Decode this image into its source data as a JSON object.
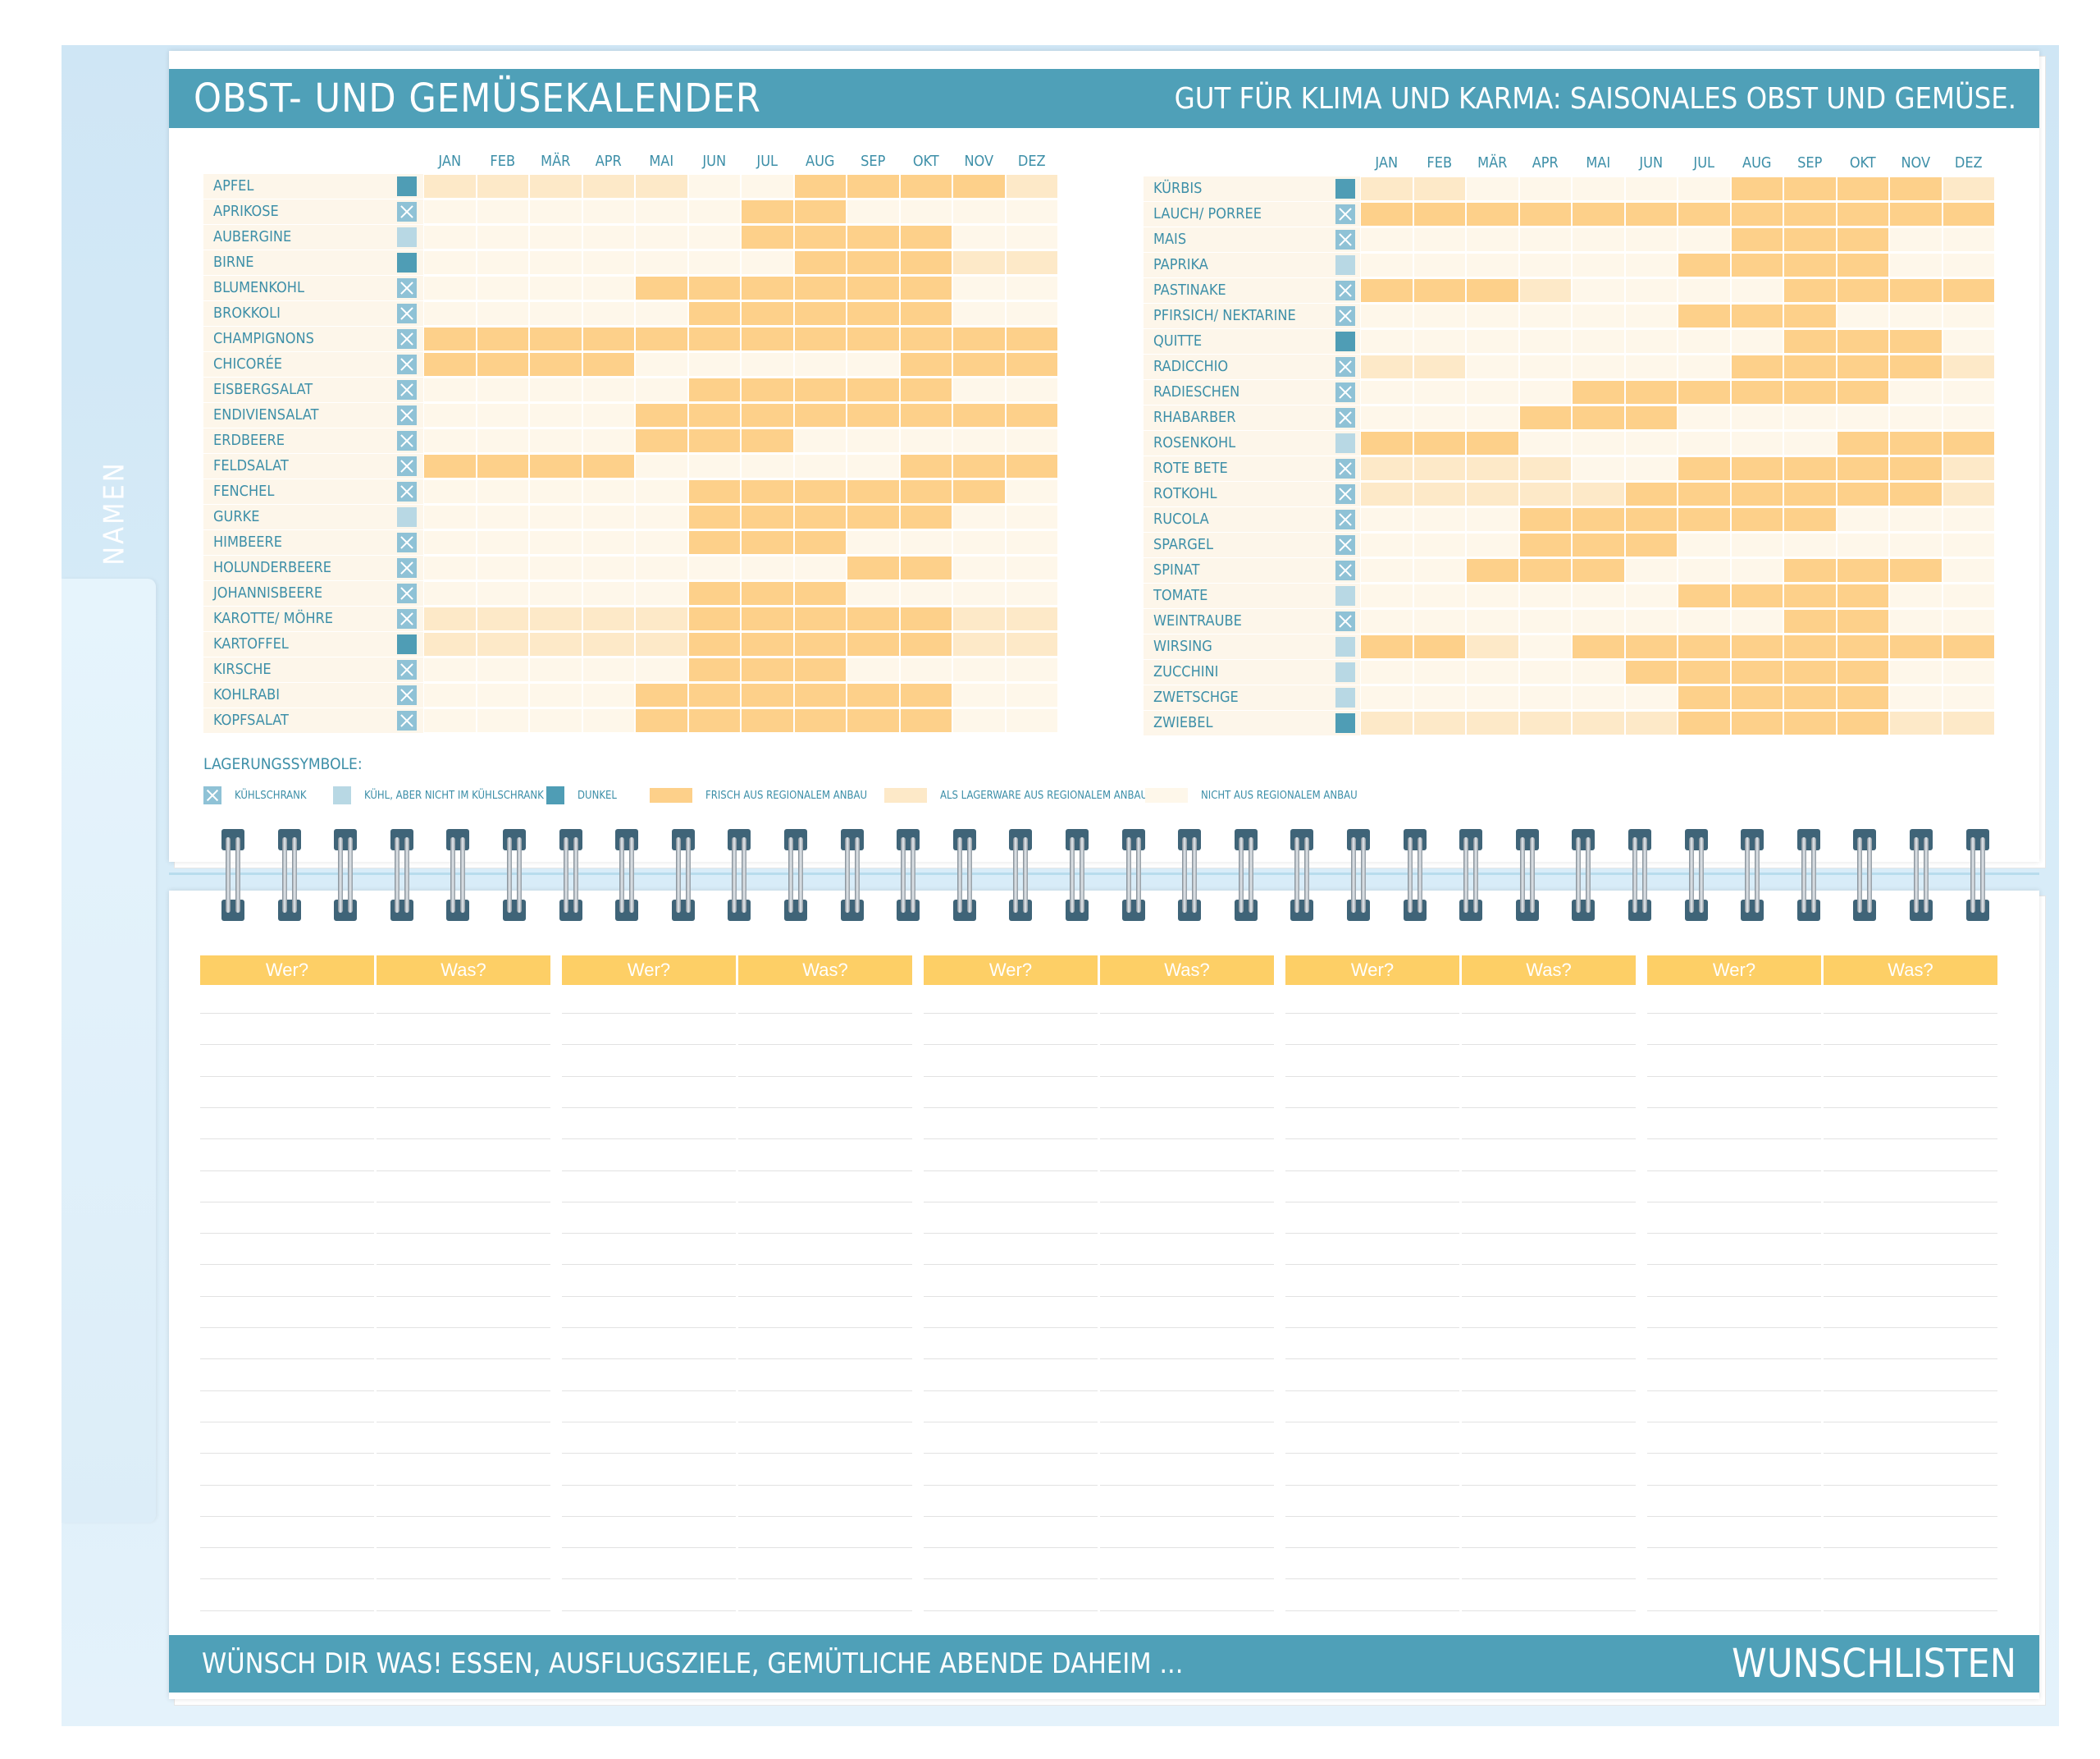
{
  "header": {
    "title": "Obst- und Gemüsekalender",
    "subtitle": "Gut für Klima und Karma: saisonales Obst und Gemüse."
  },
  "side_tab": {
    "label": "NAMEN"
  },
  "months": [
    "JAN",
    "FEB",
    "MÄR",
    "APR",
    "MAI",
    "JUN",
    "JUL",
    "AUG",
    "SEP",
    "OKT",
    "NOV",
    "DEZ"
  ],
  "value_legend": {
    "2": "frisch aus regionalem Anbau",
    "1": "als Lagerware aus regionalem Anbau",
    "0": "nicht aus regionalem Anbau"
  },
  "storage_legend": {
    "k": "Kühlschrank",
    "c": "kühl, aber nicht im Kühlschrank",
    "d": "dunkel"
  },
  "left_table": [
    {
      "name": "Apfel",
      "storage": "d",
      "values": [
        1,
        1,
        1,
        1,
        1,
        0,
        0,
        2,
        2,
        2,
        2,
        1
      ]
    },
    {
      "name": "Aprikose",
      "storage": "k",
      "values": [
        0,
        0,
        0,
        0,
        0,
        0,
        2,
        2,
        0,
        0,
        0,
        0
      ]
    },
    {
      "name": "Aubergine",
      "storage": "c",
      "values": [
        0,
        0,
        0,
        0,
        0,
        0,
        2,
        2,
        2,
        2,
        0,
        0
      ]
    },
    {
      "name": "Birne",
      "storage": "d",
      "values": [
        0,
        0,
        0,
        0,
        0,
        0,
        0,
        2,
        2,
        2,
        1,
        1
      ]
    },
    {
      "name": "Blumenkohl",
      "storage": "k",
      "values": [
        0,
        0,
        0,
        0,
        2,
        2,
        2,
        2,
        2,
        2,
        0,
        0
      ]
    },
    {
      "name": "Brokkoli",
      "storage": "k",
      "values": [
        0,
        0,
        0,
        0,
        0,
        2,
        2,
        2,
        2,
        2,
        0,
        0
      ]
    },
    {
      "name": "Champignons",
      "storage": "k",
      "values": [
        2,
        2,
        2,
        2,
        2,
        2,
        2,
        2,
        2,
        2,
        2,
        2
      ]
    },
    {
      "name": "Chicorée",
      "storage": "k",
      "values": [
        2,
        2,
        2,
        2,
        0,
        0,
        0,
        0,
        0,
        2,
        2,
        2
      ]
    },
    {
      "name": "Eisbergsalat",
      "storage": "k",
      "values": [
        0,
        0,
        0,
        0,
        0,
        2,
        2,
        2,
        2,
        2,
        0,
        0
      ]
    },
    {
      "name": "Endiviensalat",
      "storage": "k",
      "values": [
        0,
        0,
        0,
        0,
        2,
        2,
        2,
        2,
        2,
        2,
        2,
        2
      ]
    },
    {
      "name": "Erdbeere",
      "storage": "k",
      "values": [
        0,
        0,
        0,
        0,
        2,
        2,
        2,
        0,
        0,
        0,
        0,
        0
      ]
    },
    {
      "name": "Feldsalat",
      "storage": "k",
      "values": [
        2,
        2,
        2,
        2,
        0,
        0,
        0,
        0,
        0,
        2,
        2,
        2
      ]
    },
    {
      "name": "Fenchel",
      "storage": "k",
      "values": [
        0,
        0,
        0,
        0,
        0,
        2,
        2,
        2,
        2,
        2,
        2,
        0
      ]
    },
    {
      "name": "Gurke",
      "storage": "c",
      "values": [
        0,
        0,
        0,
        0,
        0,
        2,
        2,
        2,
        2,
        2,
        0,
        0
      ]
    },
    {
      "name": "Himbeere",
      "storage": "k",
      "values": [
        0,
        0,
        0,
        0,
        0,
        2,
        2,
        2,
        0,
        0,
        0,
        0
      ]
    },
    {
      "name": "Holunderbeere",
      "storage": "k",
      "values": [
        0,
        0,
        0,
        0,
        0,
        0,
        0,
        0,
        2,
        2,
        0,
        0
      ]
    },
    {
      "name": "Johannisbeere",
      "storage": "k",
      "values": [
        0,
        0,
        0,
        0,
        0,
        2,
        2,
        2,
        0,
        0,
        0,
        0
      ]
    },
    {
      "name": "Karotte/ Möhre",
      "storage": "k",
      "values": [
        1,
        1,
        1,
        1,
        1,
        2,
        2,
        2,
        2,
        2,
        1,
        1
      ]
    },
    {
      "name": "Kartoffel",
      "storage": "d",
      "values": [
        1,
        1,
        1,
        1,
        1,
        2,
        2,
        2,
        2,
        2,
        1,
        1
      ]
    },
    {
      "name": "Kirsche",
      "storage": "k",
      "values": [
        0,
        0,
        0,
        0,
        0,
        2,
        2,
        2,
        0,
        0,
        0,
        0
      ]
    },
    {
      "name": "Kohlrabi",
      "storage": "k",
      "values": [
        0,
        0,
        0,
        0,
        2,
        2,
        2,
        2,
        2,
        2,
        0,
        0
      ]
    },
    {
      "name": "Kopfsalat",
      "storage": "k",
      "values": [
        0,
        0,
        0,
        0,
        2,
        2,
        2,
        2,
        2,
        2,
        0,
        0
      ]
    }
  ],
  "right_table": [
    {
      "name": "Kürbis",
      "storage": "d",
      "values": [
        1,
        1,
        0,
        0,
        0,
        0,
        0,
        2,
        2,
        2,
        2,
        1
      ]
    },
    {
      "name": "Lauch/ Porree",
      "storage": "k",
      "values": [
        2,
        2,
        2,
        2,
        2,
        2,
        2,
        2,
        2,
        2,
        2,
        2
      ]
    },
    {
      "name": "Mais",
      "storage": "k",
      "values": [
        0,
        0,
        0,
        0,
        0,
        0,
        0,
        2,
        2,
        2,
        0,
        0
      ]
    },
    {
      "name": "Paprika",
      "storage": "c",
      "values": [
        0,
        0,
        0,
        0,
        0,
        0,
        2,
        2,
        2,
        2,
        0,
        0
      ]
    },
    {
      "name": "Pastinake",
      "storage": "k",
      "values": [
        2,
        2,
        2,
        1,
        0,
        0,
        0,
        0,
        2,
        2,
        2,
        2
      ]
    },
    {
      "name": "Pfirsich/ Nektarine",
      "storage": "k",
      "values": [
        0,
        0,
        0,
        0,
        0,
        0,
        2,
        2,
        2,
        0,
        0,
        0
      ]
    },
    {
      "name": "Quitte",
      "storage": "d",
      "values": [
        0,
        0,
        0,
        0,
        0,
        0,
        0,
        0,
        2,
        2,
        2,
        0
      ]
    },
    {
      "name": "Radicchio",
      "storage": "k",
      "values": [
        1,
        1,
        0,
        0,
        0,
        0,
        0,
        2,
        2,
        2,
        2,
        1
      ]
    },
    {
      "name": "Radieschen",
      "storage": "k",
      "values": [
        0,
        0,
        0,
        0,
        2,
        2,
        2,
        2,
        2,
        2,
        0,
        0
      ]
    },
    {
      "name": "Rhabarber",
      "storage": "k",
      "values": [
        0,
        0,
        0,
        2,
        2,
        2,
        0,
        0,
        0,
        0,
        0,
        0
      ]
    },
    {
      "name": "Rosenkohl",
      "storage": "c",
      "values": [
        2,
        2,
        2,
        0,
        0,
        0,
        0,
        0,
        0,
        2,
        2,
        2
      ]
    },
    {
      "name": "Rote Bete",
      "storage": "k",
      "values": [
        1,
        1,
        1,
        1,
        0,
        0,
        2,
        2,
        2,
        2,
        2,
        1
      ]
    },
    {
      "name": "Rotkohl",
      "storage": "k",
      "values": [
        1,
        1,
        1,
        1,
        1,
        2,
        2,
        2,
        2,
        2,
        2,
        1
      ]
    },
    {
      "name": "Rucola",
      "storage": "k",
      "values": [
        0,
        0,
        0,
        2,
        2,
        2,
        2,
        2,
        2,
        0,
        0,
        0
      ]
    },
    {
      "name": "Spargel",
      "storage": "k",
      "values": [
        0,
        0,
        0,
        2,
        2,
        2,
        0,
        0,
        0,
        0,
        0,
        0
      ]
    },
    {
      "name": "Spinat",
      "storage": "k",
      "values": [
        0,
        0,
        2,
        2,
        2,
        0,
        0,
        0,
        2,
        2,
        2,
        0
      ]
    },
    {
      "name": "Tomate",
      "storage": "c",
      "values": [
        0,
        0,
        0,
        0,
        0,
        0,
        2,
        2,
        2,
        2,
        0,
        0
      ]
    },
    {
      "name": "Weintraube",
      "storage": "k",
      "values": [
        0,
        0,
        0,
        0,
        0,
        0,
        0,
        0,
        2,
        2,
        0,
        0
      ]
    },
    {
      "name": "Wirsing",
      "storage": "c",
      "values": [
        2,
        2,
        1,
        0,
        2,
        2,
        2,
        2,
        2,
        2,
        2,
        2
      ]
    },
    {
      "name": "Zucchini",
      "storage": "c",
      "values": [
        0,
        0,
        0,
        0,
        0,
        2,
        2,
        2,
        2,
        2,
        0,
        0
      ]
    },
    {
      "name": "Zwetschge",
      "storage": "c",
      "values": [
        0,
        0,
        0,
        0,
        0,
        0,
        2,
        2,
        2,
        2,
        0,
        0
      ]
    },
    {
      "name": "Zwiebel",
      "storage": "d",
      "values": [
        1,
        1,
        1,
        1,
        1,
        1,
        2,
        2,
        2,
        2,
        1,
        1
      ]
    }
  ],
  "legend": {
    "title": "Lagerungssymbole:",
    "kuehlschrank": "Kühlschrank",
    "kuehl": "kühl, aber nicht im Kühlschrank",
    "dunkel": "dunkel",
    "frisch": "frisch aus regionalem Anbau",
    "lager": "als Lagerware aus regionalem Anbau",
    "nicht": "nicht aus regionalem Anbau"
  },
  "wishlist": {
    "columns": [
      "Wer?",
      "Was?",
      "Wer?",
      "Was?",
      "Wer?",
      "Was?",
      "Wer?",
      "Was?",
      "Wer?",
      "Was?"
    ]
  },
  "footer": {
    "left": "Wünsch dir was! Essen, Ausflugsziele, gemütliche Abende daheim ...",
    "right": "Wunschlisten"
  },
  "colors": {
    "teal": "#4fa0b8",
    "fresh": "#fdd08a",
    "stored": "#fde9c8",
    "none": "#fef7ea",
    "wish_header": "#fdcf66"
  }
}
